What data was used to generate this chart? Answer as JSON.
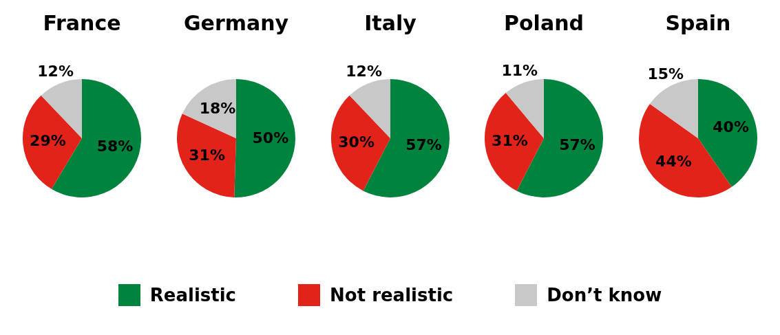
{
  "chart_data": [
    {
      "type": "pie",
      "title": "France",
      "categories": [
        "Realistic",
        "Not realistic",
        "Don’t know"
      ],
      "values": [
        58,
        29,
        12
      ],
      "value_labels": [
        "58%",
        "29%",
        "12%"
      ],
      "colors": [
        "#00843d",
        "#e2231a",
        "#c8c8c8"
      ],
      "legend": "bottom"
    },
    {
      "type": "pie",
      "title": "Germany",
      "categories": [
        null,
        null,
        null
      ],
      "values": [
        50,
        31,
        18
      ],
      "value_labels": [
        "50%",
        "31%",
        "18%"
      ],
      "colors": [
        "#00843d",
        "#e2231a",
        "#c8c8c8"
      ]
    },
    {
      "type": "pie",
      "title": "Italy",
      "categories": [
        null,
        null,
        null
      ],
      "values": [
        57,
        30,
        12
      ],
      "value_labels": [
        "57%",
        "30%",
        "12%"
      ],
      "colors": [
        "#00843d",
        "#e2231a",
        "#c8c8c8"
      ]
    },
    {
      "type": "pie",
      "title": "Poland",
      "categories": [
        null,
        null,
        null
      ],
      "values": [
        57,
        31,
        11
      ],
      "value_labels": [
        "57%",
        "31%",
        "11%"
      ],
      "colors": [
        "#00843d",
        "#e2231a",
        "#c8c8c8"
      ]
    },
    {
      "type": "pie",
      "title": "Spain",
      "categories": [
        null,
        null,
        null
      ],
      "values": [
        40,
        44,
        15
      ],
      "value_labels": [
        "40%",
        "44%",
        "15%"
      ],
      "colors": [
        "#00843d",
        "#e2231a",
        "#c8c8c8"
      ]
    }
  ]
}
